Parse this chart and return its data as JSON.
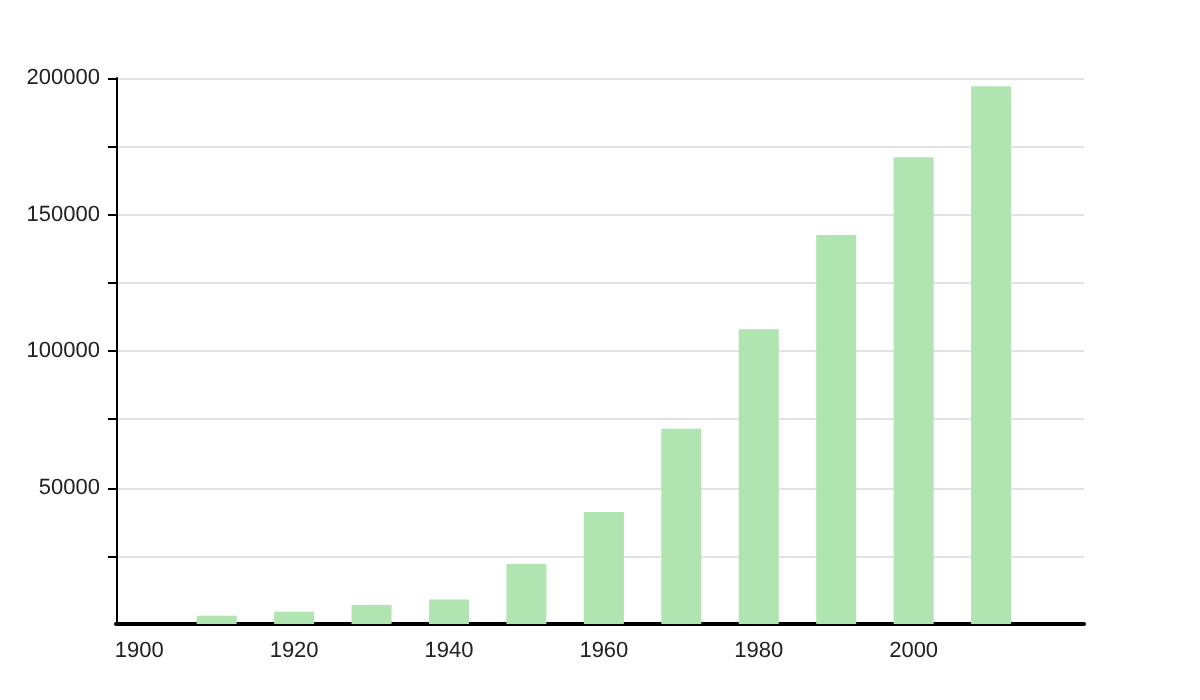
{
  "chart_data": {
    "type": "bar",
    "x": [
      1910,
      1920,
      1930,
      1940,
      1950,
      1960,
      1970,
      1980,
      1990,
      2000,
      2010
    ],
    "values": [
      3000,
      4500,
      7000,
      9000,
      22000,
      41000,
      71500,
      108000,
      142500,
      171000,
      197000
    ],
    "color": "#b0e4b0",
    "xlim": [
      1897,
      2022
    ],
    "xticks": [
      1900,
      1920,
      1940,
      1960,
      1980,
      2000
    ],
    "ylim": [
      0,
      200000
    ],
    "yticks": [
      {
        "value": 25000,
        "label": null
      },
      50000,
      {
        "value": 75000,
        "label": null
      },
      100000,
      {
        "value": 125000,
        "label": null
      },
      150000,
      {
        "value": 175000,
        "label": null
      },
      200000
    ],
    "grid": "y"
  }
}
